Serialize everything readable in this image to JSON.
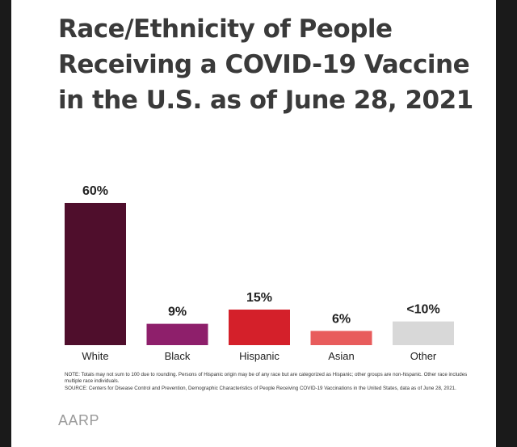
{
  "title": "Race/Ethnicity of People Receiving a COVID-19 Vaccine in the U.S. as of June 28, 2021",
  "chart_data": {
    "type": "bar",
    "title": "Race/Ethnicity of People Receiving a COVID-19 Vaccine in the U.S. as of June 28, 2021",
    "categories": [
      "White",
      "Black",
      "Hispanic",
      "Asian",
      "Other"
    ],
    "values": [
      60,
      9,
      15,
      6,
      10
    ],
    "data_labels": [
      "60%",
      "9%",
      "15%",
      "6%",
      "<10%"
    ],
    "colors": [
      "#4f0e2c",
      "#8e1f6b",
      "#d4202a",
      "#e85c5c",
      "#d8d8d8"
    ],
    "ylim": [
      0,
      60
    ],
    "grid": false,
    "xlabel": "",
    "ylabel": ""
  },
  "notes": {
    "note": "NOTE: Totals may not sum to 100 due to rounding. Persons of Hispanic origin may be of any race but are categorized as Hispanic; other groups are non-hispanic. Other race includes multiple race individuals.",
    "source": "SOURCE: Centers for Disease Control and Prevention, Demographic Characteristics of People Receiving COVID-19 Vaccinations in the United States, data as of June 28, 2021."
  },
  "brand": "AARP"
}
